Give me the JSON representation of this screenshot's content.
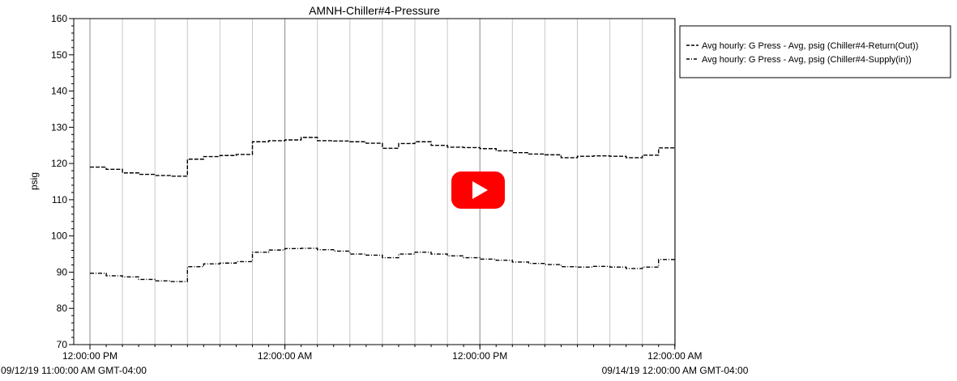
{
  "chart_data": {
    "type": "line",
    "title": "AMNH-Chiller#4-Pressure",
    "ylabel": "psig",
    "xlabel": "",
    "ylim": [
      70,
      160
    ],
    "y_ticks": [
      70,
      80,
      90,
      100,
      110,
      120,
      130,
      140,
      150,
      160
    ],
    "x_range_hours": [
      0,
      48
    ],
    "x_ticks": [
      {
        "hour": 0,
        "label": "12:00:00 PM"
      },
      {
        "hour": 12,
        "label": "12:00:00 AM"
      },
      {
        "hour": 24,
        "label": "12:00:00 PM"
      },
      {
        "hour": 36,
        "label": "12:00:00 AM"
      }
    ],
    "x_range_start_label": "09/12/19 11:00:00 AM GMT-04:00",
    "x_range_end_label": "09/14/19 12:00:00 AM GMT-04:00",
    "grid": "vertical",
    "legend_position": "right",
    "series": [
      {
        "name": "Avg hourly: G Press - Avg, psig (Chiller#4-Return(Out))",
        "style": "dashed",
        "x": [
          0,
          1,
          2,
          3,
          4,
          5,
          6,
          7,
          8,
          9,
          10,
          11,
          12,
          13,
          14,
          15,
          16,
          17,
          18,
          19,
          20,
          21,
          22,
          23,
          24,
          25,
          26,
          27,
          28,
          29,
          30,
          31,
          32,
          33,
          34,
          35,
          36
        ],
        "y": [
          119,
          118.4,
          117.4,
          117,
          116.7,
          116.5,
          121.2,
          121.9,
          122.2,
          122.5,
          126,
          126.3,
          126.5,
          127.2,
          126.3,
          126.2,
          126,
          125.6,
          124.2,
          125.5,
          126,
          125,
          124.5,
          124.4,
          124.1,
          123.5,
          123,
          122.6,
          122.4,
          121.6,
          122,
          122.1,
          122,
          121.6,
          122.3,
          124.3,
          124.4
        ]
      },
      {
        "name": "Avg hourly: G Press - Avg, psig (Chiller#4-Supply(in))",
        "style": "dashdot",
        "x": [
          0,
          1,
          2,
          3,
          4,
          5,
          6,
          7,
          8,
          9,
          10,
          11,
          12,
          13,
          14,
          15,
          16,
          17,
          18,
          19,
          20,
          21,
          22,
          23,
          24,
          25,
          26,
          27,
          28,
          29,
          30,
          31,
          32,
          33,
          34,
          35,
          36
        ],
        "y": [
          89.7,
          89,
          88.7,
          88,
          87.6,
          87.4,
          91.5,
          92.3,
          92.5,
          92.9,
          95.5,
          96.1,
          96.5,
          96.6,
          96.2,
          95.8,
          95,
          94.7,
          94,
          95,
          95.5,
          95,
          94.5,
          94,
          93.6,
          93.3,
          92.8,
          92.4,
          92.1,
          91.5,
          91.4,
          91.6,
          91.4,
          91,
          91.4,
          93.5,
          93.6
        ]
      }
    ]
  },
  "legend": {
    "entry1": "Avg hourly: G Press - Avg, psig (Chiller#4-Return(Out))",
    "entry2": "Avg hourly: G Press - Avg, psig (Chiller#4-Supply(in))"
  },
  "video_overlay": {
    "icon": "youtube-play-icon",
    "color": "#ff0000"
  }
}
